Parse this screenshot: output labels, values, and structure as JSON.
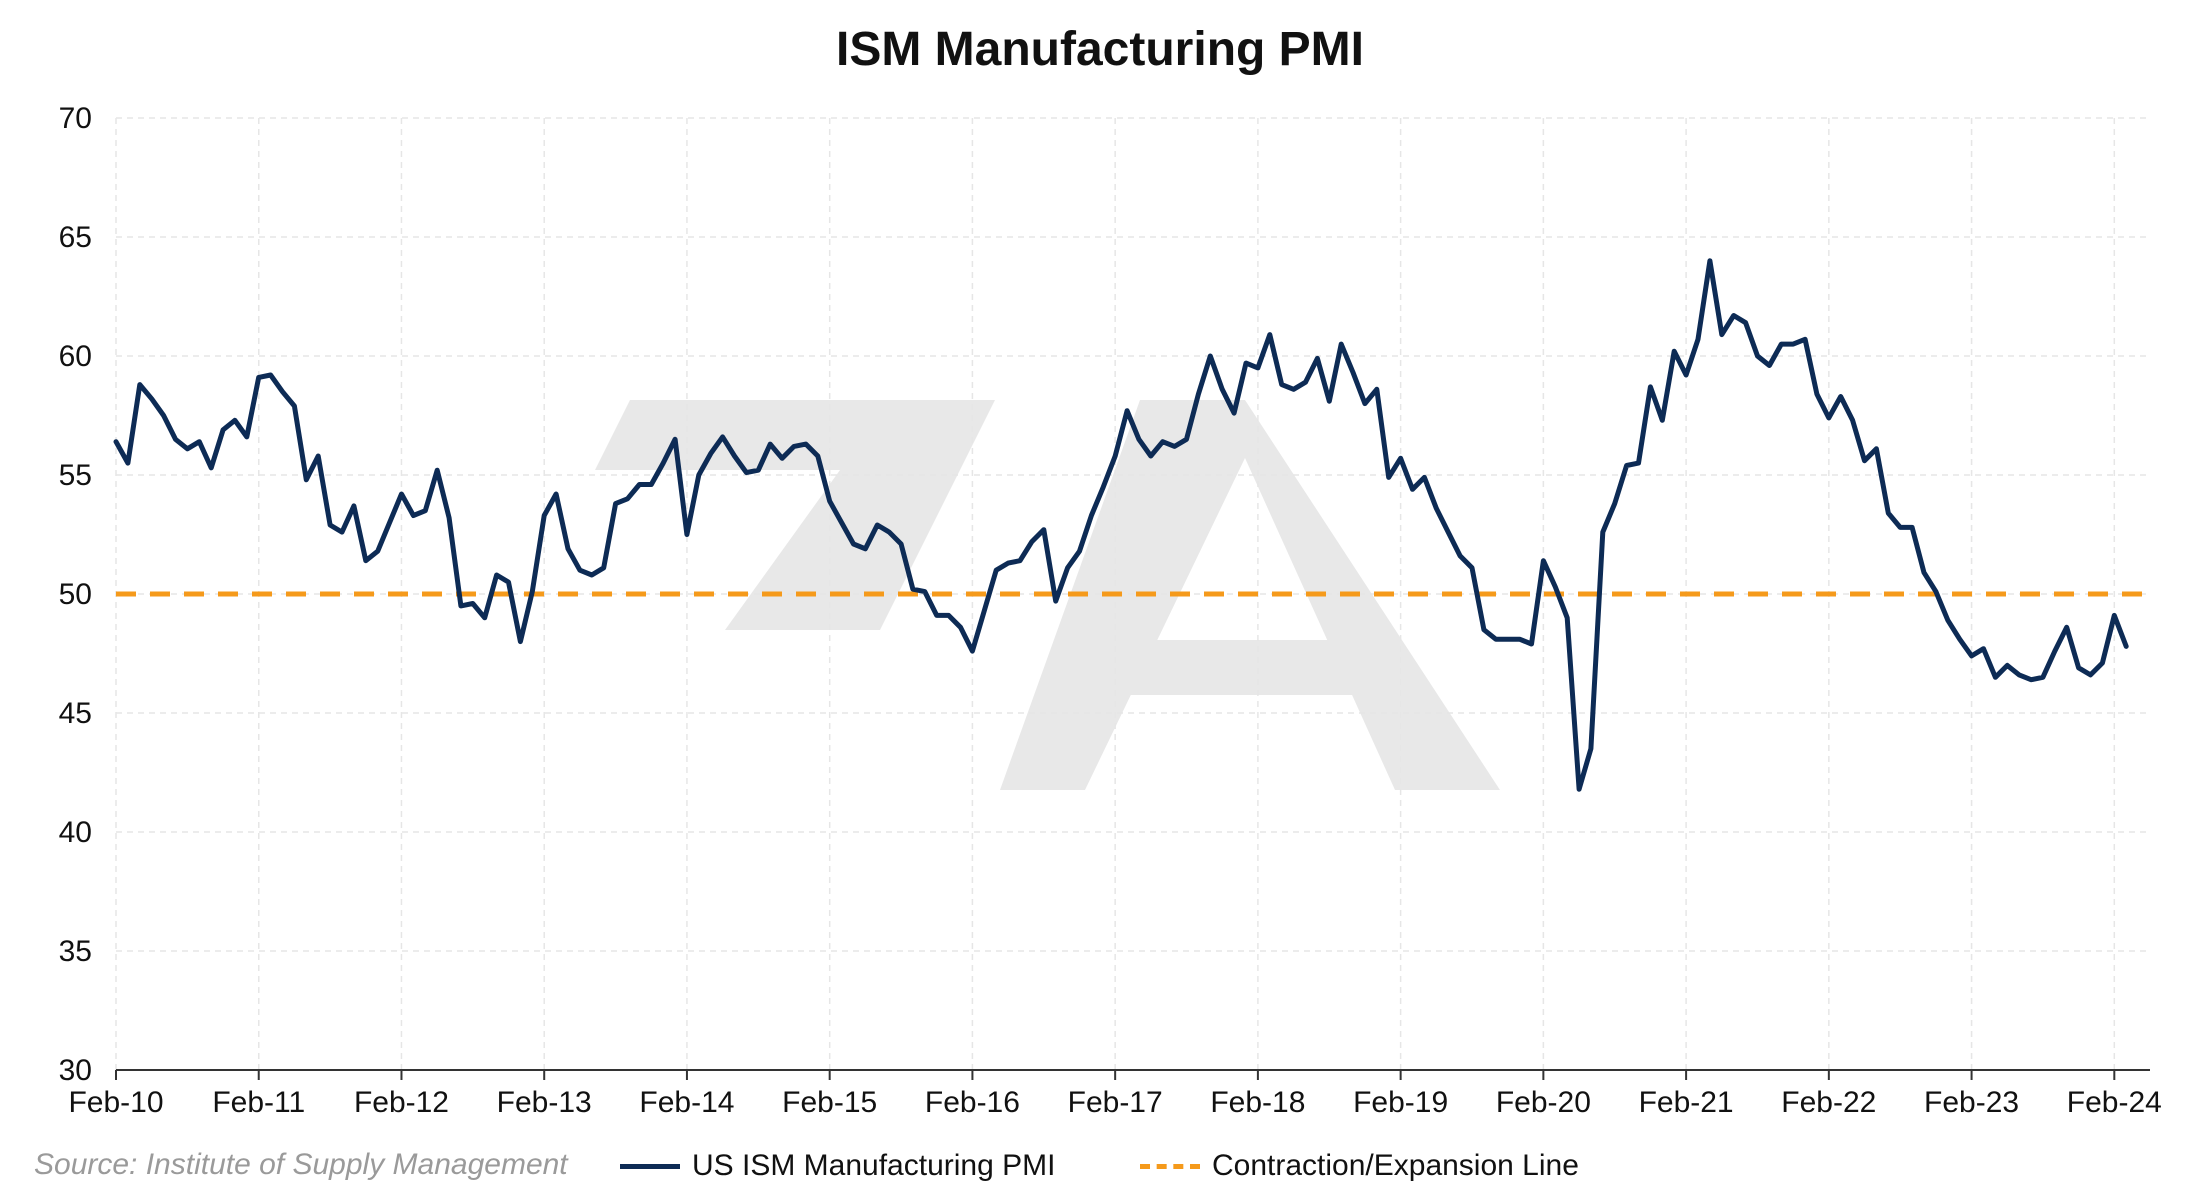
{
  "chart_data": {
    "type": "line",
    "title": "ISM Manufacturing PMI",
    "xlabel": "",
    "ylabel": "",
    "ylim": [
      30,
      70
    ],
    "yticks": [
      30,
      35,
      40,
      45,
      50,
      55,
      60,
      65,
      70
    ],
    "x_start": "Feb-10",
    "x_tick_labels": [
      "Feb-10",
      "Feb-11",
      "Feb-12",
      "Feb-13",
      "Feb-14",
      "Feb-15",
      "Feb-16",
      "Feb-17",
      "Feb-18",
      "Feb-19",
      "Feb-20",
      "Feb-21",
      "Feb-22",
      "Feb-23",
      "Feb-24"
    ],
    "grid": true,
    "legend_position": "bottom",
    "series": [
      {
        "name": "US ISM Manufacturing PMI",
        "color": "#0d2b55",
        "style": "solid",
        "values": [
          56.4,
          55.5,
          58.8,
          58.2,
          57.5,
          56.5,
          56.1,
          56.4,
          55.3,
          56.9,
          57.3,
          56.6,
          59.1,
          59.2,
          58.5,
          57.9,
          54.8,
          55.8,
          52.9,
          52.6,
          53.7,
          51.4,
          51.8,
          53.0,
          54.2,
          53.3,
          53.5,
          55.2,
          53.2,
          49.5,
          49.6,
          49.0,
          50.8,
          50.5,
          48.0,
          50.1,
          53.3,
          54.2,
          51.9,
          51.0,
          50.8,
          51.1,
          53.8,
          54.0,
          54.6,
          54.6,
          55.5,
          56.5,
          52.5,
          55.0,
          55.9,
          56.6,
          55.8,
          55.1,
          55.2,
          56.3,
          55.7,
          56.2,
          56.3,
          55.8,
          53.9,
          53.0,
          52.1,
          51.9,
          52.9,
          52.6,
          52.1,
          50.2,
          50.1,
          49.1,
          49.1,
          48.6,
          47.6,
          49.3,
          51.0,
          51.3,
          51.4,
          52.2,
          52.7,
          49.7,
          51.1,
          51.8,
          53.3,
          54.5,
          55.8,
          57.7,
          56.5,
          55.8,
          56.4,
          56.2,
          56.5,
          58.4,
          60.0,
          58.6,
          57.6,
          59.7,
          59.5,
          60.9,
          58.8,
          58.6,
          58.9,
          59.9,
          58.1,
          60.5,
          59.3,
          58.0,
          58.6,
          54.9,
          55.7,
          54.4,
          54.9,
          53.6,
          52.6,
          51.6,
          51.1,
          48.5,
          48.1,
          48.1,
          48.1,
          47.9,
          51.4,
          50.3,
          49.0,
          41.8,
          43.5,
          52.6,
          53.8,
          55.4,
          55.5,
          58.7,
          57.3,
          60.2,
          59.2,
          60.7,
          64.0,
          60.9,
          61.7,
          61.4,
          60.0,
          59.6,
          60.5,
          60.5,
          60.7,
          58.4,
          57.4,
          58.3,
          57.3,
          55.6,
          56.1,
          53.4,
          52.8,
          52.8,
          50.9,
          50.1,
          48.9,
          48.1,
          47.4,
          47.7,
          46.5,
          47.0,
          46.6,
          46.4,
          46.5,
          47.6,
          48.6,
          46.9,
          46.6,
          47.1,
          49.1,
          47.8
        ]
      },
      {
        "name": "Contraction/Expansion Line",
        "color": "#f59a1b",
        "style": "dashed",
        "value": 50
      }
    ],
    "source_note": "Source: Institute of Supply Management"
  }
}
